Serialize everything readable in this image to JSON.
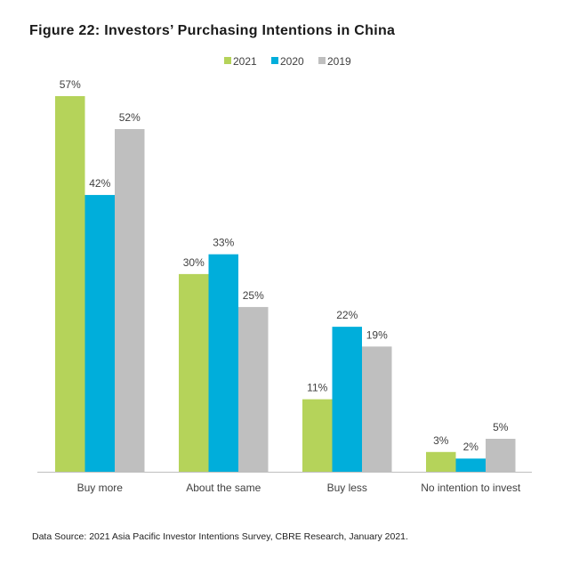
{
  "title": "Figure 22: Investors’ Purchasing Intentions in China",
  "source": "Data Source: 2021 Asia Pacific Investor Intentions Survey, CBRE Research, January 2021.",
  "chart_data": {
    "type": "bar",
    "title": "Figure 22: Investors’ Purchasing Intentions in China",
    "xlabel": "",
    "ylabel": "",
    "categories": [
      "Buy more",
      "About the same",
      "Buy less",
      "No intention to invest"
    ],
    "series": [
      {
        "name": "2021",
        "values": [
          57,
          30,
          11,
          3
        ],
        "labels": [
          "57%",
          "30%",
          "11%",
          "3%"
        ],
        "color": "#b5d35a"
      },
      {
        "name": "2020",
        "values": [
          42,
          33,
          22,
          2
        ],
        "labels": [
          "42%",
          "33%",
          "22%",
          "2%"
        ],
        "color": "#00aedb"
      },
      {
        "name": "2019",
        "values": [
          52,
          25,
          19,
          5
        ],
        "labels": [
          "52%",
          "25%",
          "19%",
          "5%"
        ],
        "color": "#bfbfbf"
      }
    ],
    "ylim": [
      0,
      57
    ],
    "grid": false,
    "legend_position": "top-center",
    "axis_color": "#bfbfbf"
  }
}
